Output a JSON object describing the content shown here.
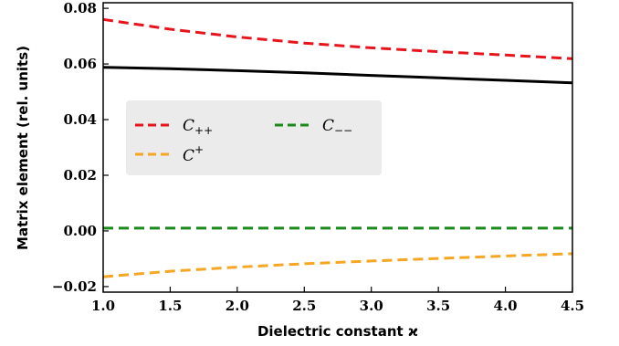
{
  "chart_data": {
    "type": "line",
    "xlabel": "Dielectric constant ϰ",
    "ylabel": "Matrix element (rel. units)",
    "xlim": [
      1.0,
      4.5
    ],
    "ylim": [
      -0.022,
      0.082
    ],
    "xticks": [
      "1.0",
      "1.5",
      "2.0",
      "2.5",
      "3.0",
      "3.5",
      "4.0",
      "4.5"
    ],
    "yticks": [
      "−0.02",
      "0.00",
      "0.02",
      "0.04",
      "0.06",
      "0.08"
    ],
    "grid": false,
    "legend_position": "center-left",
    "series": [
      {
        "key": "cpp",
        "name": "C++",
        "color": "#e8141c",
        "dash": "dashed",
        "x": [
          1.0,
          1.5,
          2.0,
          2.5,
          3.0,
          3.5,
          4.0,
          4.5
        ],
        "y": [
          0.076,
          0.0725,
          0.0697,
          0.0675,
          0.0658,
          0.0644,
          0.0632,
          0.0619
        ]
      },
      {
        "key": "cmm",
        "name": "C−−",
        "color": "#1a8a1a",
        "dash": "dashed",
        "x": [
          1.0,
          1.5,
          2.0,
          2.5,
          3.0,
          3.5,
          4.0,
          4.5
        ],
        "y": [
          0.001,
          0.001,
          0.001,
          0.001,
          0.001,
          0.001,
          0.001,
          0.001
        ]
      },
      {
        "key": "cplus",
        "name": "C+",
        "color": "#f5a623",
        "dash": "dashed",
        "x": [
          1.0,
          1.5,
          2.0,
          2.5,
          3.0,
          3.5,
          4.0,
          4.5
        ],
        "y": [
          -0.0165,
          -0.0145,
          -0.013,
          -0.0118,
          -0.0108,
          -0.0099,
          -0.009,
          -0.0082
        ]
      },
      {
        "key": "black",
        "name": "",
        "color": "#000000",
        "dash": "solid",
        "x": [
          1.0,
          1.5,
          2.0,
          2.5,
          3.0,
          3.5,
          4.0,
          4.5
        ],
        "y": [
          0.0588,
          0.0583,
          0.0576,
          0.0568,
          0.0559,
          0.055,
          0.0541,
          0.0532
        ]
      }
    ]
  },
  "legend": {
    "cpp_main": "C",
    "cpp_sub": "++",
    "cmm_main": "C",
    "cmm_sub": "−−",
    "cplus_main": "C",
    "cplus_sup": "+"
  }
}
